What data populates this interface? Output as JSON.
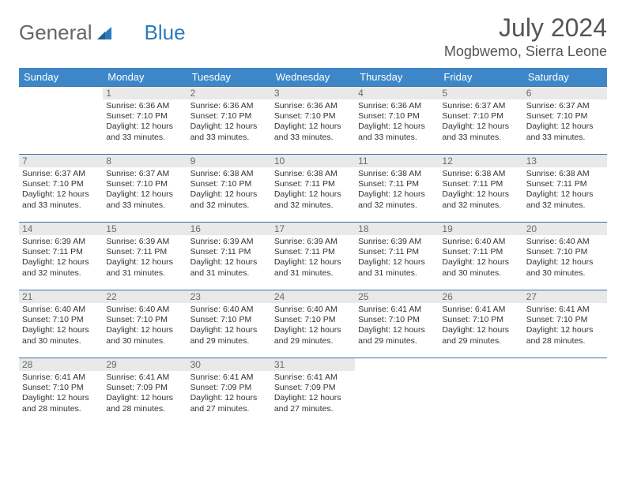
{
  "brand": {
    "part1": "General",
    "part2": "Blue"
  },
  "title": "July 2024",
  "location": "Mogbwemo, Sierra Leone",
  "colors": {
    "header_bg": "#3d87c9",
    "header_text": "#ffffff",
    "rule": "#3d6fa0",
    "daynum_bg": "#e9e9e9",
    "daynum_text": "#6b6b6b",
    "body_text": "#333333",
    "brand_gray": "#666666",
    "brand_blue": "#2b7bbf"
  },
  "dow": [
    "Sunday",
    "Monday",
    "Tuesday",
    "Wednesday",
    "Thursday",
    "Friday",
    "Saturday"
  ],
  "leading_blanks": 1,
  "days": [
    {
      "n": "1",
      "sunrise": "Sunrise: 6:36 AM",
      "sunset": "Sunset: 7:10 PM",
      "day1": "Daylight: 12 hours",
      "day2": "and 33 minutes."
    },
    {
      "n": "2",
      "sunrise": "Sunrise: 6:36 AM",
      "sunset": "Sunset: 7:10 PM",
      "day1": "Daylight: 12 hours",
      "day2": "and 33 minutes."
    },
    {
      "n": "3",
      "sunrise": "Sunrise: 6:36 AM",
      "sunset": "Sunset: 7:10 PM",
      "day1": "Daylight: 12 hours",
      "day2": "and 33 minutes."
    },
    {
      "n": "4",
      "sunrise": "Sunrise: 6:36 AM",
      "sunset": "Sunset: 7:10 PM",
      "day1": "Daylight: 12 hours",
      "day2": "and 33 minutes."
    },
    {
      "n": "5",
      "sunrise": "Sunrise: 6:37 AM",
      "sunset": "Sunset: 7:10 PM",
      "day1": "Daylight: 12 hours",
      "day2": "and 33 minutes."
    },
    {
      "n": "6",
      "sunrise": "Sunrise: 6:37 AM",
      "sunset": "Sunset: 7:10 PM",
      "day1": "Daylight: 12 hours",
      "day2": "and 33 minutes."
    },
    {
      "n": "7",
      "sunrise": "Sunrise: 6:37 AM",
      "sunset": "Sunset: 7:10 PM",
      "day1": "Daylight: 12 hours",
      "day2": "and 33 minutes."
    },
    {
      "n": "8",
      "sunrise": "Sunrise: 6:37 AM",
      "sunset": "Sunset: 7:10 PM",
      "day1": "Daylight: 12 hours",
      "day2": "and 33 minutes."
    },
    {
      "n": "9",
      "sunrise": "Sunrise: 6:38 AM",
      "sunset": "Sunset: 7:10 PM",
      "day1": "Daylight: 12 hours",
      "day2": "and 32 minutes."
    },
    {
      "n": "10",
      "sunrise": "Sunrise: 6:38 AM",
      "sunset": "Sunset: 7:11 PM",
      "day1": "Daylight: 12 hours",
      "day2": "and 32 minutes."
    },
    {
      "n": "11",
      "sunrise": "Sunrise: 6:38 AM",
      "sunset": "Sunset: 7:11 PM",
      "day1": "Daylight: 12 hours",
      "day2": "and 32 minutes."
    },
    {
      "n": "12",
      "sunrise": "Sunrise: 6:38 AM",
      "sunset": "Sunset: 7:11 PM",
      "day1": "Daylight: 12 hours",
      "day2": "and 32 minutes."
    },
    {
      "n": "13",
      "sunrise": "Sunrise: 6:38 AM",
      "sunset": "Sunset: 7:11 PM",
      "day1": "Daylight: 12 hours",
      "day2": "and 32 minutes."
    },
    {
      "n": "14",
      "sunrise": "Sunrise: 6:39 AM",
      "sunset": "Sunset: 7:11 PM",
      "day1": "Daylight: 12 hours",
      "day2": "and 32 minutes."
    },
    {
      "n": "15",
      "sunrise": "Sunrise: 6:39 AM",
      "sunset": "Sunset: 7:11 PM",
      "day1": "Daylight: 12 hours",
      "day2": "and 31 minutes."
    },
    {
      "n": "16",
      "sunrise": "Sunrise: 6:39 AM",
      "sunset": "Sunset: 7:11 PM",
      "day1": "Daylight: 12 hours",
      "day2": "and 31 minutes."
    },
    {
      "n": "17",
      "sunrise": "Sunrise: 6:39 AM",
      "sunset": "Sunset: 7:11 PM",
      "day1": "Daylight: 12 hours",
      "day2": "and 31 minutes."
    },
    {
      "n": "18",
      "sunrise": "Sunrise: 6:39 AM",
      "sunset": "Sunset: 7:11 PM",
      "day1": "Daylight: 12 hours",
      "day2": "and 31 minutes."
    },
    {
      "n": "19",
      "sunrise": "Sunrise: 6:40 AM",
      "sunset": "Sunset: 7:11 PM",
      "day1": "Daylight: 12 hours",
      "day2": "and 30 minutes."
    },
    {
      "n": "20",
      "sunrise": "Sunrise: 6:40 AM",
      "sunset": "Sunset: 7:10 PM",
      "day1": "Daylight: 12 hours",
      "day2": "and 30 minutes."
    },
    {
      "n": "21",
      "sunrise": "Sunrise: 6:40 AM",
      "sunset": "Sunset: 7:10 PM",
      "day1": "Daylight: 12 hours",
      "day2": "and 30 minutes."
    },
    {
      "n": "22",
      "sunrise": "Sunrise: 6:40 AM",
      "sunset": "Sunset: 7:10 PM",
      "day1": "Daylight: 12 hours",
      "day2": "and 30 minutes."
    },
    {
      "n": "23",
      "sunrise": "Sunrise: 6:40 AM",
      "sunset": "Sunset: 7:10 PM",
      "day1": "Daylight: 12 hours",
      "day2": "and 29 minutes."
    },
    {
      "n": "24",
      "sunrise": "Sunrise: 6:40 AM",
      "sunset": "Sunset: 7:10 PM",
      "day1": "Daylight: 12 hours",
      "day2": "and 29 minutes."
    },
    {
      "n": "25",
      "sunrise": "Sunrise: 6:41 AM",
      "sunset": "Sunset: 7:10 PM",
      "day1": "Daylight: 12 hours",
      "day2": "and 29 minutes."
    },
    {
      "n": "26",
      "sunrise": "Sunrise: 6:41 AM",
      "sunset": "Sunset: 7:10 PM",
      "day1": "Daylight: 12 hours",
      "day2": "and 29 minutes."
    },
    {
      "n": "27",
      "sunrise": "Sunrise: 6:41 AM",
      "sunset": "Sunset: 7:10 PM",
      "day1": "Daylight: 12 hours",
      "day2": "and 28 minutes."
    },
    {
      "n": "28",
      "sunrise": "Sunrise: 6:41 AM",
      "sunset": "Sunset: 7:10 PM",
      "day1": "Daylight: 12 hours",
      "day2": "and 28 minutes."
    },
    {
      "n": "29",
      "sunrise": "Sunrise: 6:41 AM",
      "sunset": "Sunset: 7:09 PM",
      "day1": "Daylight: 12 hours",
      "day2": "and 28 minutes."
    },
    {
      "n": "30",
      "sunrise": "Sunrise: 6:41 AM",
      "sunset": "Sunset: 7:09 PM",
      "day1": "Daylight: 12 hours",
      "day2": "and 27 minutes."
    },
    {
      "n": "31",
      "sunrise": "Sunrise: 6:41 AM",
      "sunset": "Sunset: 7:09 PM",
      "day1": "Daylight: 12 hours",
      "day2": "and 27 minutes."
    }
  ]
}
